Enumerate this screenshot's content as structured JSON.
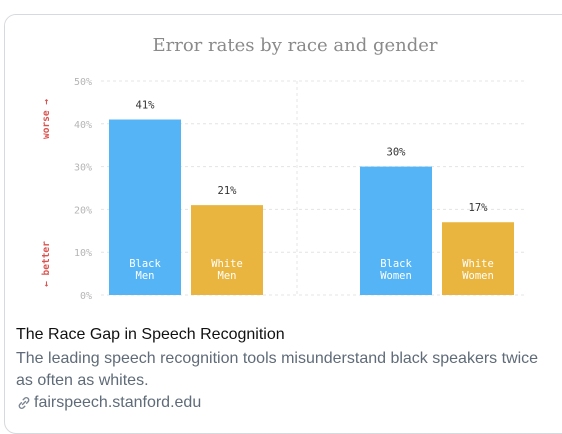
{
  "colors": {
    "black_bar": "#55b4f5",
    "white_bar": "#e9b53f",
    "grid": "#e4e4e4",
    "worse_better": "#d9534f",
    "axis_text": "#b5b5b5"
  },
  "chart_data": {
    "type": "bar",
    "title": "Error rates by race and gender",
    "ylim": [
      0,
      50
    ],
    "yticks": [
      "0%",
      "10%",
      "20%",
      "30%",
      "40%",
      "50%"
    ],
    "y_annotations": {
      "top": "worse →",
      "bottom": "← better"
    },
    "grid": true,
    "bars": [
      {
        "group": "Men",
        "label": [
          "Black",
          "Men"
        ],
        "value": 41,
        "value_label": "41%",
        "color_key": "black_bar"
      },
      {
        "group": "Men",
        "label": [
          "White",
          "Men"
        ],
        "value": 21,
        "value_label": "21%",
        "color_key": "white_bar"
      },
      {
        "group": "Women",
        "label": [
          "Black",
          "Women"
        ],
        "value": 30,
        "value_label": "30%",
        "color_key": "black_bar"
      },
      {
        "group": "Women",
        "label": [
          "White",
          "Women"
        ],
        "value": 17,
        "value_label": "17%",
        "color_key": "white_bar"
      }
    ]
  },
  "preview": {
    "title": "The Race Gap in Speech Recognition",
    "description": "The leading speech recognition tools misunderstand black speakers twice as often as whites.",
    "link_icon": "link-icon",
    "domain": "fairspeech.stanford.edu"
  }
}
